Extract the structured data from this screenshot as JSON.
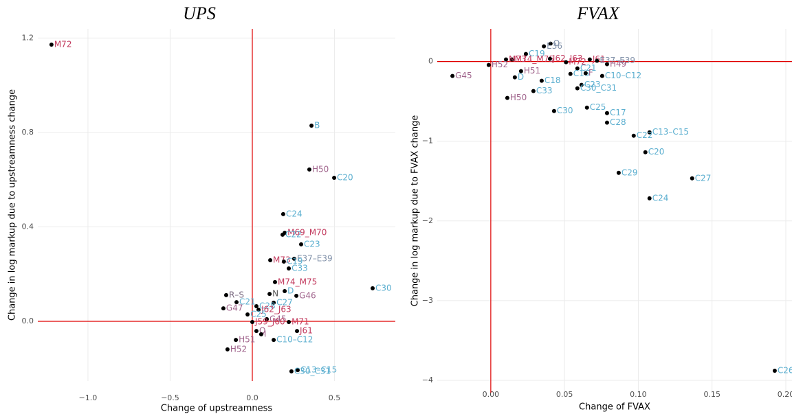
{
  "chart_data": [
    {
      "type": "scatter",
      "title": "UPS",
      "xlabel": "Change of upstreamness",
      "ylabel": "Change in log markup due to upstreamness change",
      "labels": [
        "M72",
        "B",
        "H50",
        "C20",
        "C24",
        "M69_M70",
        "C22",
        "C23",
        "M73",
        "E37–E39",
        "C19",
        "C33",
        "C30",
        "M74_M75",
        "D",
        "G46",
        "R–S",
        "N",
        "C21",
        "C27",
        "C28",
        "G47",
        "J62_J63",
        "C25",
        "G45",
        "J59_J60",
        "M71",
        "Q",
        "I",
        "J61",
        "C10–C12",
        "H51",
        "H52",
        "C13–C15",
        "C30_C31"
      ],
      "x": [
        -1.222,
        0.36,
        0.347,
        0.498,
        0.188,
        0.197,
        0.184,
        0.297,
        0.109,
        0.255,
        0.192,
        0.222,
        0.732,
        0.138,
        0.197,
        0.268,
        -0.159,
        0.105,
        -0.096,
        0.13,
        0.025,
        -0.176,
        0.038,
        -0.029,
        0.088,
        0.0,
        0.222,
        0.025,
        0.054,
        0.272,
        0.13,
        -0.1,
        -0.151,
        0.276,
        0.238
      ],
      "values": [
        1.172,
        0.829,
        0.643,
        0.608,
        0.454,
        0.375,
        0.367,
        0.326,
        0.259,
        0.265,
        0.253,
        0.224,
        0.14,
        0.166,
        0.128,
        0.108,
        0.111,
        0.116,
        0.081,
        0.079,
        0.064,
        0.055,
        0.049,
        0.029,
        0.009,
        -0.003,
        -0.003,
        -0.041,
        -0.055,
        -0.041,
        -0.079,
        -0.079,
        -0.119,
        -0.207,
        -0.212
      ],
      "label_colors": [
        "#c23a5e",
        "#5aaecf",
        "#a0648c",
        "#5aaecf",
        "#5aaecf",
        "#c23a5e",
        "#5aaecf",
        "#5aaecf",
        "#c23a5e",
        "#8090a8",
        "#5aaecf",
        "#5aaecf",
        "#5aaecf",
        "#c23a5e",
        "#5aaecf",
        "#a0648c",
        "#7a6a80",
        "#555555",
        "#5aaecf",
        "#5aaecf",
        "#5aaecf",
        "#a0648c",
        "#c23a5e",
        "#5aaecf",
        "#a0648c",
        "#c23a5e",
        "#c23a5e",
        "#a0648c",
        "#a0648c",
        "#c23a5e",
        "#5aaecf",
        "#a0648c",
        "#a0648c",
        "#5aaecf",
        "#5aaecf"
      ],
      "point_color": "#000000",
      "xlim": [
        -1.305,
        0.87
      ],
      "ylim": [
        -0.253,
        1.239
      ],
      "xticks": [
        {
          "value": -1.0,
          "label": "−1.0"
        },
        {
          "value": -0.5,
          "label": "−0.5"
        },
        {
          "value": 0,
          "label": "0.0"
        },
        0.5
      ],
      "yticks": [
        {
          "value": 0,
          "label": "0.0"
        },
        0.4,
        0.8,
        1.2
      ],
      "grid": true,
      "reference_lines": {
        "x": 0,
        "y": 0,
        "color": "#e00000"
      }
    },
    {
      "type": "scatter",
      "title": "FVAX",
      "xlabel": "Change of FVAX",
      "ylabel": "Change in log markup due to FVAX change",
      "labels": [
        "O",
        "E36",
        "C19",
        "M74_M75",
        "M73",
        "J62_J63",
        "J61",
        "E37–E39",
        "M72",
        "H49",
        "H52",
        "H51",
        "G45",
        "C21",
        "C16",
        "F",
        "C10–C12",
        "D",
        "C18",
        "C23",
        "C30_C31",
        "C33",
        "H50",
        "C30",
        "C25",
        "C17",
        "C28",
        "C13–C15",
        "C22",
        "C20",
        "C29",
        "C27",
        "C24",
        "C26"
      ],
      "x": [
        0.0405,
        0.036,
        0.0238,
        0.0144,
        0.0103,
        0.0401,
        0.0671,
        0.072,
        0.051,
        0.0788,
        -0.0014,
        0.0205,
        -0.026,
        0.0587,
        0.054,
        0.0643,
        0.0755,
        0.0163,
        0.0345,
        0.0615,
        0.0587,
        0.0289,
        0.0112,
        0.0429,
        0.0652,
        0.0788,
        0.0788,
        0.1076,
        0.0969,
        0.1048,
        0.0867,
        0.1365,
        0.1076,
        0.1925
      ],
      "values": [
        0.224,
        0.19,
        0.095,
        0.026,
        0.026,
        0.034,
        0.026,
        0.009,
        -0.009,
        -0.034,
        -0.043,
        -0.121,
        -0.181,
        -0.086,
        -0.155,
        -0.147,
        -0.181,
        -0.198,
        -0.241,
        -0.293,
        -0.336,
        -0.371,
        -0.457,
        -0.621,
        -0.578,
        -0.647,
        -0.767,
        -0.888,
        -0.931,
        -1.138,
        -1.397,
        -1.466,
        -1.716,
        -3.879
      ],
      "label_colors": [
        "#8090a8",
        "#8090a8",
        "#5aaecf",
        "#c23a5e",
        "#c23a5e",
        "#c23a5e",
        "#c23a5e",
        "#8090a8",
        "#c23a5e",
        "#a0648c",
        "#a0648c",
        "#a0648c",
        "#a0648c",
        "#5aaecf",
        "#5aaecf",
        "#a0648c",
        "#5aaecf",
        "#5aaecf",
        "#5aaecf",
        "#5aaecf",
        "#5aaecf",
        "#5aaecf",
        "#a0648c",
        "#5aaecf",
        "#5aaecf",
        "#5aaecf",
        "#5aaecf",
        "#5aaecf",
        "#5aaecf",
        "#5aaecf",
        "#5aaecf",
        "#5aaecf",
        "#5aaecf",
        "#5aaecf"
      ],
      "point_color": "#000000",
      "xlim": [
        -0.0363,
        0.2042
      ],
      "ylim": [
        -4.155,
        0.41
      ],
      "xticks": [
        {
          "value": 0,
          "label": "0.00"
        },
        0.05,
        {
          "value": 0.1,
          "label": "0.10"
        },
        0.15,
        {
          "value": 0.2,
          "label": "0.20"
        }
      ],
      "yticks": [
        {
          "value": -4,
          "label": "−4"
        },
        {
          "value": -3,
          "label": "−3"
        },
        {
          "value": -2,
          "label": "−2"
        },
        {
          "value": -1,
          "label": "−1"
        },
        0
      ],
      "grid": true,
      "reference_lines": {
        "x": 0,
        "y": 0,
        "color": "#e00000"
      }
    }
  ]
}
